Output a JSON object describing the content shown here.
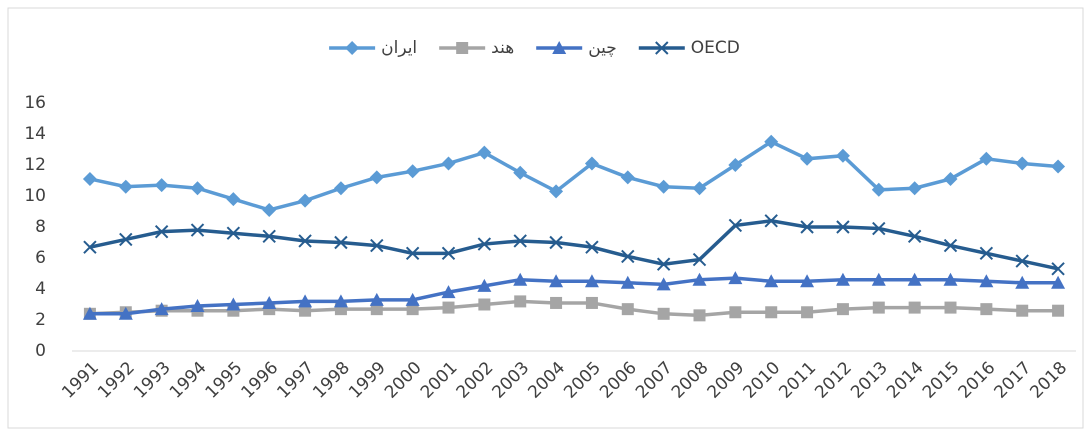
{
  "chart_data": {
    "type": "line",
    "categories": [
      "1991",
      "1992",
      "1993",
      "1994",
      "1995",
      "1996",
      "1997",
      "1998",
      "1999",
      "2000",
      "2001",
      "2002",
      "2003",
      "2004",
      "2005",
      "2006",
      "2007",
      "2008",
      "2009",
      "2010",
      "2011",
      "2012",
      "2013",
      "2014",
      "2015",
      "2016",
      "2017",
      "2018"
    ],
    "series": [
      {
        "name": "ایران",
        "color": "#5b9bd5",
        "marker": "diamond",
        "values": [
          11.1,
          10.6,
          10.7,
          10.5,
          9.8,
          9.1,
          9.7,
          10.5,
          11.2,
          11.6,
          12.1,
          12.8,
          11.5,
          10.3,
          12.1,
          11.2,
          10.6,
          10.5,
          12.0,
          13.5,
          12.4,
          12.6,
          10.4,
          10.5,
          11.1,
          12.4,
          12.1,
          11.9
        ]
      },
      {
        "name": "هند",
        "color": "#a5a5a5",
        "marker": "square",
        "values": [
          2.4,
          2.5,
          2.6,
          2.6,
          2.6,
          2.7,
          2.6,
          2.7,
          2.7,
          2.7,
          2.8,
          3.0,
          3.2,
          3.1,
          3.1,
          2.7,
          2.4,
          2.3,
          2.5,
          2.5,
          2.5,
          2.7,
          2.8,
          2.8,
          2.8,
          2.7,
          2.6,
          2.6
        ]
      },
      {
        "name": "چین",
        "color": "#4472c4",
        "marker": "triangle",
        "values": [
          2.4,
          2.4,
          2.7,
          2.9,
          3.0,
          3.1,
          3.2,
          3.2,
          3.3,
          3.3,
          3.8,
          4.2,
          4.6,
          4.5,
          4.5,
          4.4,
          4.3,
          4.6,
          4.7,
          4.5,
          4.5,
          4.6,
          4.6,
          4.6,
          4.6,
          4.5,
          4.4,
          4.4
        ]
      },
      {
        "name": "OECD",
        "color": "#265c8f",
        "marker": "x",
        "values": [
          6.7,
          7.2,
          7.7,
          7.8,
          7.6,
          7.4,
          7.1,
          7.0,
          6.8,
          6.3,
          6.3,
          6.9,
          7.1,
          7.0,
          6.7,
          6.1,
          5.6,
          5.9,
          8.1,
          8.4,
          8.0,
          8.0,
          7.9,
          7.4,
          6.8,
          6.3,
          5.8,
          5.3
        ]
      }
    ],
    "ylim": [
      0,
      16
    ],
    "yticks": [
      0,
      2,
      4,
      6,
      8,
      10,
      12,
      14,
      16
    ],
    "grid": false,
    "legend": "top"
  }
}
